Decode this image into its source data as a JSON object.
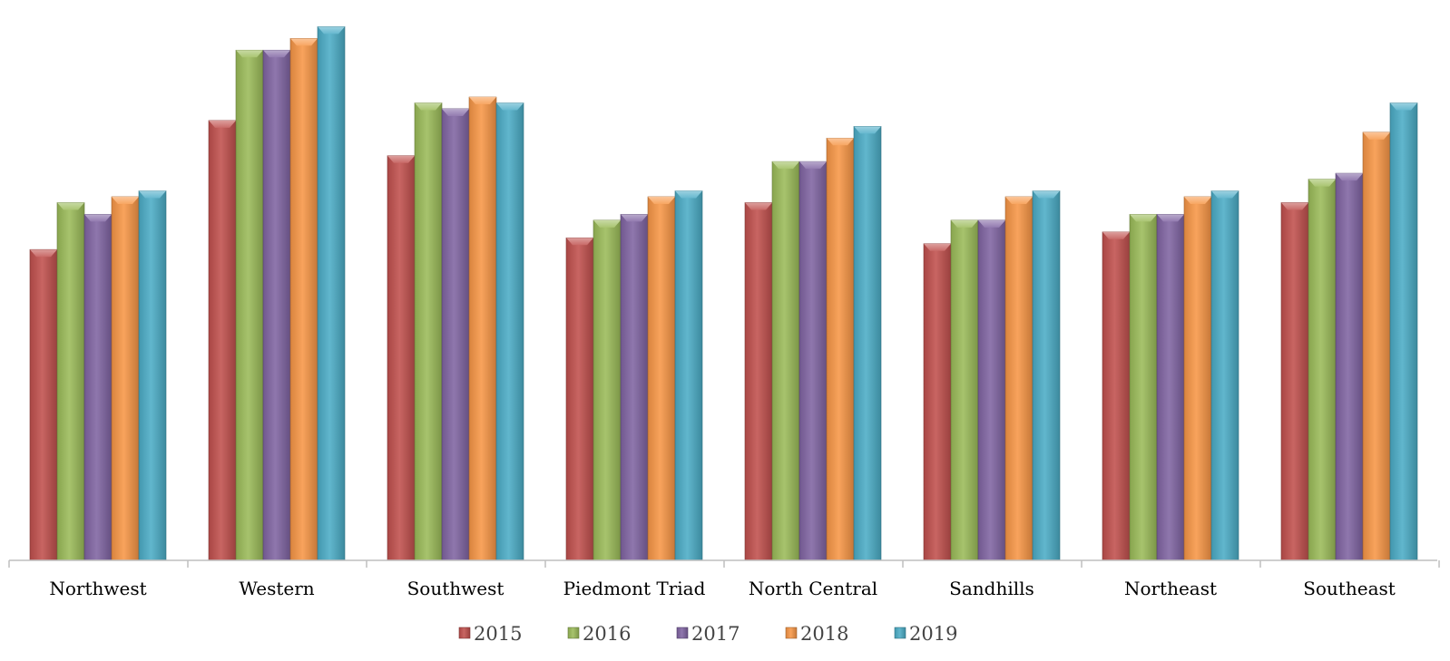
{
  "chart_data": {
    "type": "bar",
    "style": "3d-column",
    "categories": [
      "Northwest",
      "Western",
      "Southwest",
      "Piedmont Triad",
      "North Central",
      "Sandhills",
      "Northeast",
      "Southeast"
    ],
    "series": [
      {
        "name": "2015",
        "color": "#C0504D",
        "values": [
          53,
          75,
          69,
          55,
          61,
          54,
          56,
          61
        ]
      },
      {
        "name": "2016",
        "color": "#9BBB59",
        "values": [
          61,
          87,
          78,
          58,
          68,
          58,
          59,
          65
        ]
      },
      {
        "name": "2017",
        "color": "#8064A2",
        "values": [
          59,
          87,
          77,
          59,
          68,
          58,
          59,
          66
        ]
      },
      {
        "name": "2018",
        "color": "#F79646",
        "values": [
          62,
          89,
          79,
          62,
          72,
          62,
          62,
          73
        ]
      },
      {
        "name": "2019",
        "color": "#4BACC6",
        "values": [
          63,
          91,
          78,
          63,
          74,
          63,
          63,
          78
        ]
      }
    ],
    "title": "",
    "xlabel": "",
    "ylabel": "",
    "ylim": [
      0,
      94
    ],
    "grid": false,
    "legend_position": "bottom"
  }
}
